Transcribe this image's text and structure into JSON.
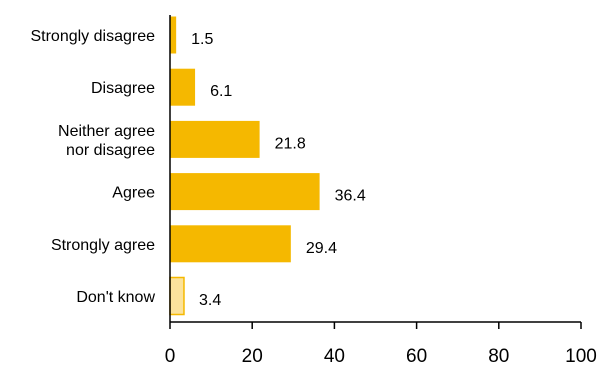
{
  "chart_data": {
    "type": "bar",
    "orientation": "horizontal",
    "categories": [
      [
        "Strongly disagree"
      ],
      [
        "Disagree"
      ],
      [
        "Neither agree",
        "nor disagree"
      ],
      [
        "Agree"
      ],
      [
        "Strongly agree"
      ],
      [
        "Don't know"
      ]
    ],
    "values": [
      1.5,
      6.1,
      21.8,
      36.4,
      29.4,
      3.4
    ],
    "value_labels": [
      "1.5",
      "6.1",
      "21.8",
      "36.4",
      "29.4",
      "3.4"
    ],
    "xlim": [
      0,
      100
    ],
    "xticks": [
      "0",
      "20",
      "40",
      "60",
      "80",
      "100"
    ],
    "title": "",
    "xlabel": "",
    "ylabel": "",
    "grid": false,
    "legend": "none",
    "colors": {
      "bar": "#F5B800",
      "bar_muted": "#FBE29C",
      "bar_muted_outline": "#F5B800",
      "axis": "#000000"
    },
    "muted_categories": [
      "Don't know"
    ]
  }
}
